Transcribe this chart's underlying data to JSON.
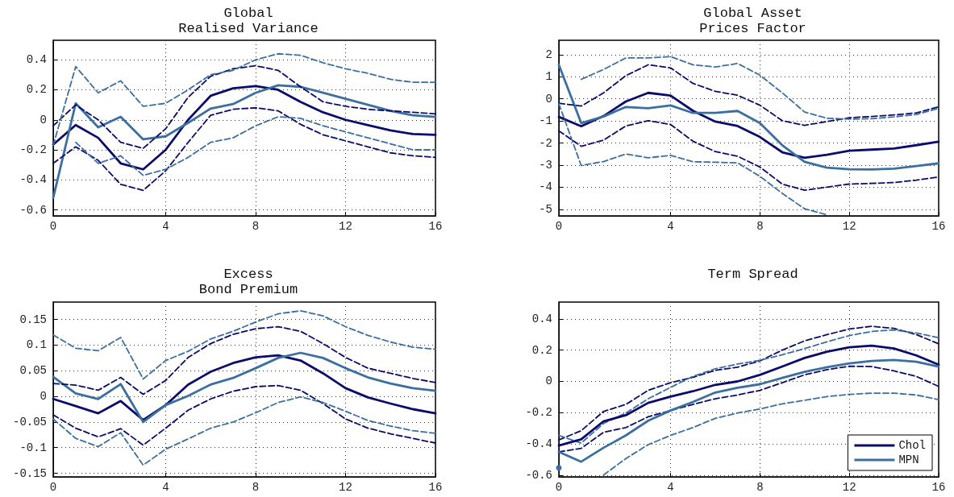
{
  "chart_data": [
    {
      "type": "line",
      "title": "Global\nRealised Variance",
      "categories": [
        "0",
        null,
        null,
        null,
        null,
        "4",
        null,
        null,
        null,
        "8",
        null,
        null,
        null,
        "12",
        null,
        null,
        null,
        "16"
      ],
      "ylim": [
        -0.64,
        0.53
      ],
      "yticks": [
        -0.6,
        -0.4,
        -0.2,
        0,
        0.2,
        0.4
      ],
      "grid": true,
      "legend": false,
      "line_style": "solid",
      "marker": "none",
      "series": [
        {
          "color": "#0b0b6b",
          "values": [
            -0.165,
            -0.035,
            -0.12,
            -0.29,
            -0.33,
            -0.2,
            0.0,
            0.16,
            0.21,
            0.225,
            0.2,
            0.12,
            0.05,
            0.0,
            -0.035,
            -0.07,
            -0.095,
            -0.1
          ]
        },
        {
          "color": "#3a6fa0",
          "values": [
            -0.52,
            0.11,
            -0.05,
            0.02,
            -0.13,
            -0.11,
            -0.02,
            0.075,
            0.105,
            0.18,
            0.23,
            0.22,
            0.18,
            0.14,
            0.1,
            0.06,
            0.03,
            0.02
          ]
        },
        {
          "color": "#0b0b6b",
          "line_style": "dashed",
          "values": [
            -0.29,
            -0.18,
            -0.27,
            -0.43,
            -0.47,
            -0.34,
            -0.15,
            0.03,
            0.07,
            0.08,
            0.06,
            -0.03,
            -0.1,
            -0.14,
            -0.18,
            -0.22,
            -0.24,
            -0.25
          ]
        },
        {
          "color": "#0b0b6b",
          "line_style": "dashed",
          "values": [
            -0.04,
            0.1,
            0.0,
            -0.15,
            -0.19,
            -0.06,
            0.15,
            0.29,
            0.34,
            0.36,
            0.33,
            0.22,
            0.12,
            0.09,
            0.07,
            0.06,
            0.05,
            0.04
          ]
        },
        {
          "color": "#3a6fa0",
          "line_style": "dashed",
          "values": [
            null,
            -0.15,
            -0.29,
            -0.24,
            -0.37,
            -0.33,
            -0.25,
            -0.15,
            -0.12,
            -0.04,
            0.02,
            0.01,
            -0.04,
            -0.08,
            -0.12,
            -0.16,
            -0.2,
            -0.2
          ]
        },
        {
          "color": "#3a6fa0",
          "line_style": "dashed",
          "values": [
            -0.17,
            0.355,
            0.18,
            0.26,
            0.09,
            0.11,
            0.2,
            0.3,
            0.33,
            0.4,
            0.44,
            0.43,
            0.38,
            0.34,
            0.31,
            0.27,
            0.25,
            0.25
          ]
        }
      ]
    },
    {
      "type": "line",
      "title": "Global Asset\nPrices Factor",
      "categories": [
        "0",
        null,
        null,
        null,
        null,
        "4",
        null,
        null,
        null,
        "8",
        null,
        null,
        null,
        "12",
        null,
        null,
        null,
        "16"
      ],
      "ylim": [
        -5.3,
        2.65
      ],
      "yticks": [
        -5,
        -4,
        -3,
        -2,
        -1,
        0,
        1,
        2
      ],
      "grid": true,
      "legend": false,
      "line_style": "solid",
      "marker": "none",
      "series": [
        {
          "color": "#0b0b6b",
          "values": [
            -0.82,
            -1.24,
            -0.78,
            -0.12,
            0.27,
            0.15,
            -0.54,
            -1.03,
            -1.23,
            -1.73,
            -2.42,
            -2.67,
            -2.53,
            -2.35,
            -2.3,
            -2.25,
            -2.1,
            -1.94
          ]
        },
        {
          "color": "#3a6fa0",
          "values": [
            1.54,
            -1.1,
            -0.8,
            -0.37,
            -0.43,
            -0.3,
            -0.64,
            -0.64,
            -0.55,
            -1.1,
            -2.1,
            -2.85,
            -3.12,
            -3.19,
            -3.2,
            -3.16,
            -3.04,
            -2.92
          ]
        },
        {
          "color": "#0b0b6b",
          "line_style": "dashed",
          "values": [
            -1.45,
            -2.15,
            -1.87,
            -1.23,
            -0.99,
            -1.16,
            -1.92,
            -2.39,
            -2.6,
            -3.09,
            -3.86,
            -4.14,
            -4.0,
            -3.86,
            -3.83,
            -3.79,
            -3.68,
            -3.54
          ]
        },
        {
          "color": "#0b0b6b",
          "line_style": "dashed",
          "values": [
            -0.2,
            -0.33,
            0.27,
            1.05,
            1.54,
            1.4,
            0.7,
            0.34,
            0.16,
            -0.29,
            -0.99,
            -1.2,
            -1.03,
            -0.86,
            -0.8,
            -0.73,
            -0.64,
            -0.36
          ]
        },
        {
          "color": "#3a6fa0",
          "line_style": "dashed",
          "values": [
            -0.22,
            -3.02,
            -2.84,
            -2.5,
            -2.67,
            -2.56,
            -2.85,
            -2.87,
            -2.9,
            -3.51,
            -4.28,
            -4.98,
            -5.25,
            null,
            null,
            null,
            null,
            null
          ]
        },
        {
          "color": "#3a6fa0",
          "line_style": "dashed",
          "values": [
            null,
            0.88,
            1.33,
            1.85,
            1.85,
            1.91,
            1.54,
            1.44,
            1.6,
            1.07,
            0.27,
            -0.6,
            -0.88,
            -0.92,
            -0.9,
            -0.82,
            -0.71,
            -0.43
          ]
        }
      ]
    },
    {
      "type": "line",
      "title": "Excess\nBond Premium",
      "categories": [
        "0",
        null,
        null,
        null,
        null,
        "4",
        null,
        null,
        null,
        "8",
        null,
        null,
        null,
        "12",
        null,
        null,
        null,
        "16"
      ],
      "ylim": [
        -0.157,
        0.184
      ],
      "yticks": [
        -0.15,
        -0.1,
        -0.05,
        0,
        0.05,
        0.1,
        0.15
      ],
      "grid": true,
      "legend": false,
      "line_style": "solid",
      "marker": "none",
      "series": [
        {
          "color": "#0b0b6b",
          "values": [
            -0.005,
            -0.019,
            -0.033,
            -0.009,
            -0.046,
            -0.017,
            0.023,
            0.048,
            0.065,
            0.076,
            0.08,
            0.07,
            0.045,
            0.016,
            -0.002,
            -0.014,
            -0.025,
            -0.033
          ]
        },
        {
          "color": "#3a6fa0",
          "values": [
            0.038,
            0.006,
            -0.005,
            0.024,
            -0.05,
            -0.017,
            0.001,
            0.023,
            0.036,
            0.055,
            0.075,
            0.085,
            0.075,
            0.055,
            0.037,
            0.025,
            0.016,
            0.011
          ]
        },
        {
          "color": "#0b0b6b",
          "line_style": "dashed",
          "values": [
            -0.036,
            -0.062,
            -0.079,
            -0.063,
            -0.095,
            -0.062,
            -0.027,
            -0.005,
            0.01,
            0.019,
            0.021,
            0.012,
            -0.014,
            -0.044,
            -0.062,
            -0.073,
            -0.082,
            -0.091
          ]
        },
        {
          "color": "#0b0b6b",
          "line_style": "dashed",
          "values": [
            0.025,
            0.022,
            0.012,
            0.037,
            0.004,
            0.031,
            0.076,
            0.103,
            0.121,
            0.132,
            0.136,
            0.127,
            0.103,
            0.076,
            0.055,
            0.045,
            0.035,
            0.027
          ]
        },
        {
          "color": "#3a6fa0",
          "line_style": "dashed",
          "values": [
            -0.044,
            -0.082,
            -0.098,
            -0.071,
            -0.134,
            -0.103,
            -0.083,
            -0.062,
            -0.05,
            -0.032,
            -0.012,
            -0.001,
            -0.012,
            -0.029,
            -0.047,
            -0.058,
            -0.067,
            -0.072
          ]
        },
        {
          "color": "#3a6fa0",
          "line_style": "dashed",
          "values": [
            0.12,
            0.094,
            0.089,
            0.115,
            0.034,
            0.07,
            0.088,
            0.112,
            0.127,
            0.145,
            0.161,
            0.167,
            0.157,
            0.136,
            0.119,
            0.106,
            0.096,
            0.092
          ]
        }
      ]
    },
    {
      "type": "line",
      "title": "Term Spread",
      "categories": [
        "0",
        null,
        null,
        null,
        null,
        "4",
        null,
        null,
        null,
        "8",
        null,
        null,
        null,
        "12",
        null,
        null,
        null,
        "16"
      ],
      "ylim": [
        -0.61,
        0.507
      ],
      "yticks": [
        -0.6,
        -0.4,
        -0.2,
        0,
        0.2,
        0.4
      ],
      "grid": true,
      "legend": "bottom right",
      "line_style": "solid",
      "marker": "none",
      "series": [
        {
          "name": "Chol",
          "color": "#0b0b6b",
          "values": [
            -0.41,
            -0.37,
            -0.255,
            -0.216,
            -0.137,
            -0.097,
            -0.063,
            -0.022,
            0.0,
            0.042,
            0.095,
            0.15,
            0.19,
            0.218,
            0.228,
            0.21,
            0.166,
            0.107
          ]
        },
        {
          "name": "MPN",
          "color": "#3a6fa0",
          "values": [
            -0.45,
            -0.513,
            -0.424,
            -0.345,
            -0.251,
            -0.186,
            -0.131,
            -0.071,
            -0.04,
            -0.018,
            0.022,
            0.061,
            0.091,
            0.115,
            0.131,
            0.137,
            0.125,
            0.095
          ]
        },
        {
          "color": "#0b0b6b",
          "line_style": "dashed",
          "values": [
            -0.45,
            -0.428,
            -0.325,
            -0.295,
            -0.226,
            -0.186,
            -0.147,
            -0.111,
            -0.087,
            -0.057,
            -0.008,
            0.042,
            0.075,
            0.097,
            0.095,
            0.067,
            0.032,
            -0.032
          ]
        },
        {
          "color": "#0b0b6b",
          "line_style": "dashed",
          "values": [
            -0.374,
            -0.315,
            -0.192,
            -0.147,
            -0.057,
            -0.008,
            0.026,
            0.071,
            0.091,
            0.131,
            0.2,
            0.259,
            0.299,
            0.335,
            0.352,
            0.339,
            0.299,
            0.24
          ]
        },
        {
          "color": "#3a6fa0",
          "line_style": "dashed",
          "values": [
            -0.552,
            null,
            -0.598,
            -0.493,
            -0.404,
            -0.345,
            -0.295,
            -0.236,
            -0.202,
            -0.176,
            -0.143,
            -0.121,
            -0.097,
            -0.083,
            -0.075,
            -0.075,
            -0.087,
            -0.117
          ]
        },
        {
          "color": "#3a6fa0",
          "line_style": "dashed",
          "values": [
            -0.345,
            -0.394,
            -0.269,
            -0.202,
            -0.111,
            -0.038,
            0.032,
            0.081,
            0.111,
            0.135,
            0.17,
            0.21,
            0.253,
            0.293,
            0.319,
            0.329,
            0.309,
            0.279
          ]
        }
      ]
    }
  ]
}
